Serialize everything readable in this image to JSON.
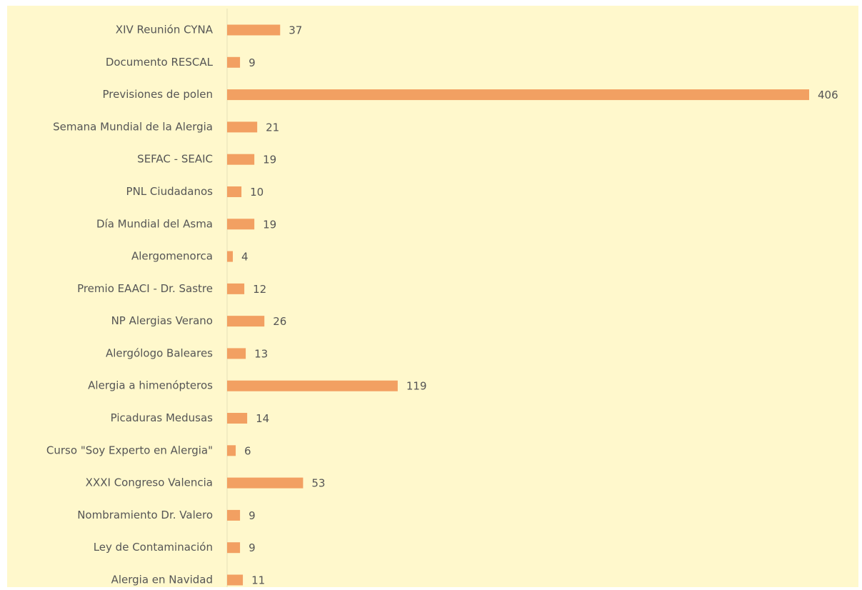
{
  "chart_data": {
    "type": "bar",
    "orientation": "horizontal",
    "categories": [
      "XIV Reunión CYNA",
      "Documento RESCAL",
      "Previsiones de polen",
      "Semana Mundial de la Alergia",
      "SEFAC - SEAIC",
      "PNL Ciudadanos",
      "Día Mundial del Asma",
      "Alergomenorca",
      "Premio EAACI - Dr. Sastre",
      "NP Alergias Verano",
      "Alergólogo Baleares",
      "Alergia a himenópteros",
      "Picaduras Medusas",
      "Curso \"Soy Experto en Alergia\"",
      "XXXI Congreso Valencia",
      "Nombramiento Dr. Valero",
      "Ley de Contaminación",
      "Alergia en Navidad"
    ],
    "values": [
      37,
      9,
      406,
      21,
      19,
      10,
      19,
      4,
      12,
      26,
      13,
      119,
      14,
      6,
      53,
      9,
      9,
      11
    ],
    "color": "#f2a062"
  }
}
